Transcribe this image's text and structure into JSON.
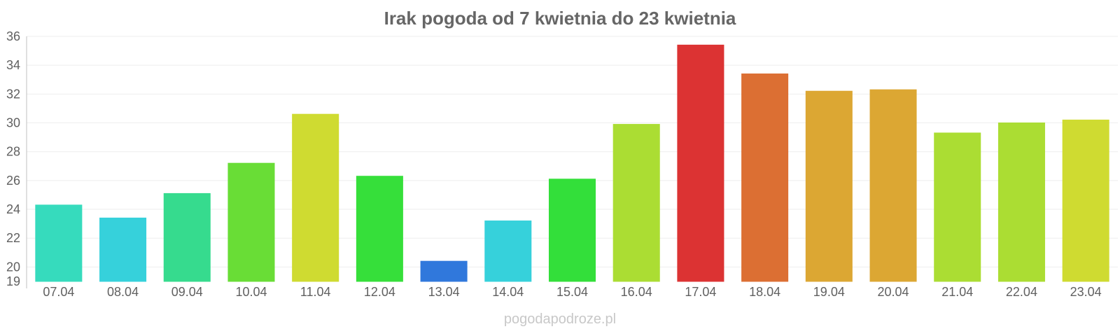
{
  "title": "Irak pogoda od 7 kwietnia do 23 kwietnia",
  "watermark": "pogodapodroze.pl",
  "chart_data": {
    "type": "bar",
    "title": "Irak pogoda od 7 kwietnia do 23 kwietnia",
    "xlabel": "",
    "ylabel": "",
    "categories": [
      "07.04",
      "08.04",
      "09.04",
      "10.04",
      "11.04",
      "12.04",
      "13.04",
      "14.04",
      "15.04",
      "16.04",
      "17.04",
      "18.04",
      "19.04",
      "20.04",
      "21.04",
      "22.04",
      "23.04"
    ],
    "values": [
      24.3,
      23.4,
      25.1,
      27.2,
      30.6,
      26.3,
      20.4,
      23.2,
      26.1,
      29.9,
      35.4,
      33.4,
      32.2,
      32.3,
      29.3,
      30.0,
      30.2
    ],
    "colors": [
      "#36dbbd",
      "#36d1db",
      "#36db8e",
      "#69dd36",
      "#cfdb31",
      "#36df3a",
      "#3078dc",
      "#36d1db",
      "#33df3a",
      "#abdd33",
      "#dc3333",
      "#dc6f33",
      "#dca733",
      "#dca733",
      "#abdd33",
      "#abdd33",
      "#cfdb31"
    ],
    "ylim": [
      19,
      36
    ],
    "yticks": [
      19,
      20,
      22,
      24,
      26,
      28,
      30,
      32,
      34,
      36
    ],
    "grid": true,
    "legend": "none"
  }
}
